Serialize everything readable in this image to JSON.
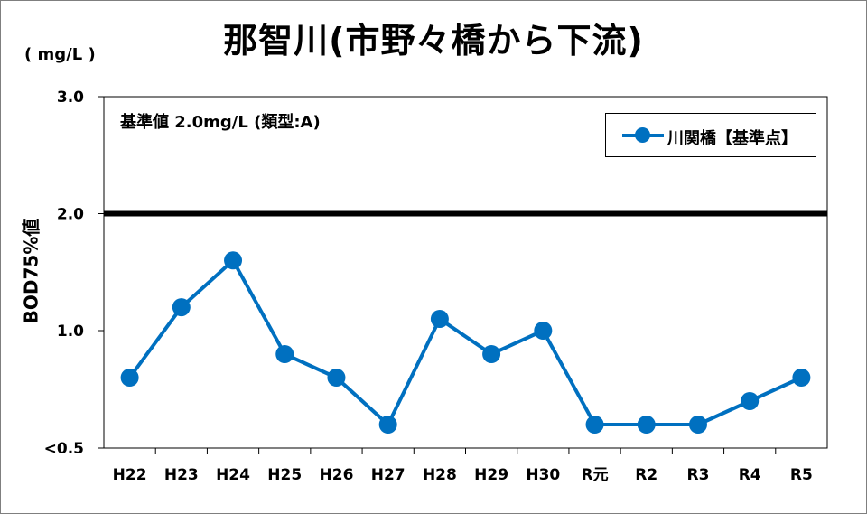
{
  "chart_data": {
    "type": "line",
    "title": "那智川(市野々橋から下流)",
    "unit_label": "( mg/L )",
    "ylabel": "BOD75%値",
    "ylim": [
      0.5,
      3.0
    ],
    "yticks": [
      {
        "value": 0.5,
        "label": "<0.5"
      },
      {
        "value": 1.0,
        "label": "1.0"
      },
      {
        "value": 2.0,
        "label": "2.0"
      },
      {
        "value": 3.0,
        "label": "3.0"
      }
    ],
    "categories": [
      "H22",
      "H23",
      "H24",
      "H25",
      "H26",
      "H27",
      "H28",
      "H29",
      "H30",
      "R元",
      "R2",
      "R3",
      "R4",
      "R5"
    ],
    "series": [
      {
        "name": "川関橋【基準点】",
        "color": "#0070c0",
        "values": [
          0.8,
          1.2,
          1.6,
          0.9,
          0.8,
          0.6,
          1.1,
          0.9,
          1.0,
          0.6,
          0.6,
          0.6,
          0.7,
          0.8
        ]
      }
    ],
    "reference_line": {
      "value": 2.0,
      "color": "#000000"
    },
    "annotation": "基準値 2.0mg/L (類型:A)",
    "legend_position": "top-right",
    "grid": false
  }
}
